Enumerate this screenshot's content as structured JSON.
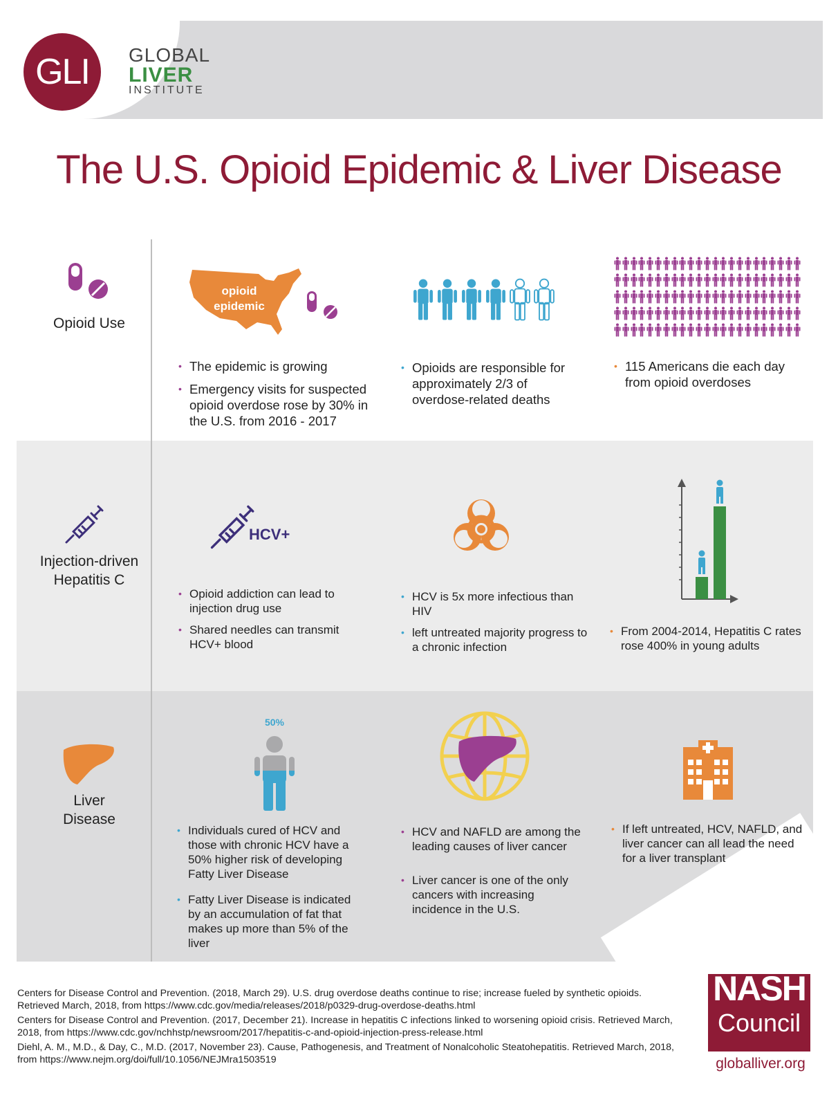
{
  "logo": {
    "monogram": "GLI",
    "line1": "GLOBAL",
    "line2": "LIVER",
    "line3": "INSTITUTE"
  },
  "title": "The U.S. Opioid Epidemic & Liver Disease",
  "rows": {
    "opioid": {
      "label": "Opioid Use",
      "map_text_1": "opioid",
      "map_text_2": "epidemic",
      "col1": [
        "The epidemic is growing",
        "Emergency visits for suspected opioid overdose rose by 30% in the U.S. from 2016 - 2017"
      ],
      "col2": [
        "Opioids are responsible for approximately 2/3 of overdose-related deaths"
      ],
      "col3": [
        "115 Americans die each day from opioid overdoses"
      ],
      "people_filled": 4,
      "people_total": 6,
      "crowd_count": 115
    },
    "hepc": {
      "label_1": "Injection-driven",
      "label_2": "Hepatitis C",
      "hcv_label": "HCV+",
      "col1": [
        "Opioid addiction can lead to injection drug use",
        "Shared needles can transmit HCV+ blood"
      ],
      "col2": [
        "HCV is 5x more infectious than HIV",
        "left untreated majority progress to a chronic infection"
      ],
      "col3": [
        "From 2004-2014, Hepatitis C rates rose 400% in young adults"
      ]
    },
    "liver": {
      "label_1": "Liver",
      "label_2": "Disease",
      "percent_label": "50%",
      "col1": [
        "Individuals cured of HCV and those with chronic HCV have a 50% higher risk of developing Fatty Liver Disease",
        "Fatty Liver Disease is indicated by an accumulation of fat that makes up more than 5% of the liver"
      ],
      "col2": [
        "HCV and NAFLD are among the leading causes of liver cancer",
        "Liver cancer is one of the only cancers with increasing incidence in the U.S."
      ],
      "col3": [
        "If left untreated, HCV, NAFLD, and liver cancer can all lead the need for a liver transplant"
      ]
    }
  },
  "references": [
    "Centers for Disease Control and Prevention. (2018, March 29). U.S. drug overdose deaths continue to rise; increase fueled by synthetic opioids. Retrieved March, 2018, from https://www.cdc.gov/media/releases/2018/p0329-drug-overdose-deaths.html",
    "Centers for Disease Control and Prevention. (2017, December 21). Increase in hepatitis C infections linked to worsening opioid crisis. Retrieved March, 2018, from https://www.cdc.gov/nchhstp/newsroom/2017/hepatitis-c-and-opioid-injection-press-release.html",
    "Diehl, A. M., M.D., & Day, C., M.D. (2017, November 23). Cause, Pathogenesis, and Treatment of Nonalcoholic Steatohepatitis. Retrieved March, 2018, from https://www.nejm.org/doi/full/10.1056/NEJMra1503519"
  ],
  "footer": {
    "nash": "NASH",
    "council": "Council",
    "site": "globalliver.org"
  },
  "colors": {
    "brand": "#8e1b36",
    "green": "#3b8f43",
    "purple": "#9b3f91",
    "blue": "#3ea6cf",
    "orange": "#e8893a",
    "navy": "#3d2f7a",
    "yellow": "#f2d04f"
  },
  "icons": [
    "pill-capsule-icon",
    "tablet-icon",
    "us-map-icon",
    "person-icon",
    "syringe-icon",
    "biohazard-icon",
    "bar-chart-icon",
    "liver-icon",
    "globe-icon",
    "hospital-icon"
  ]
}
